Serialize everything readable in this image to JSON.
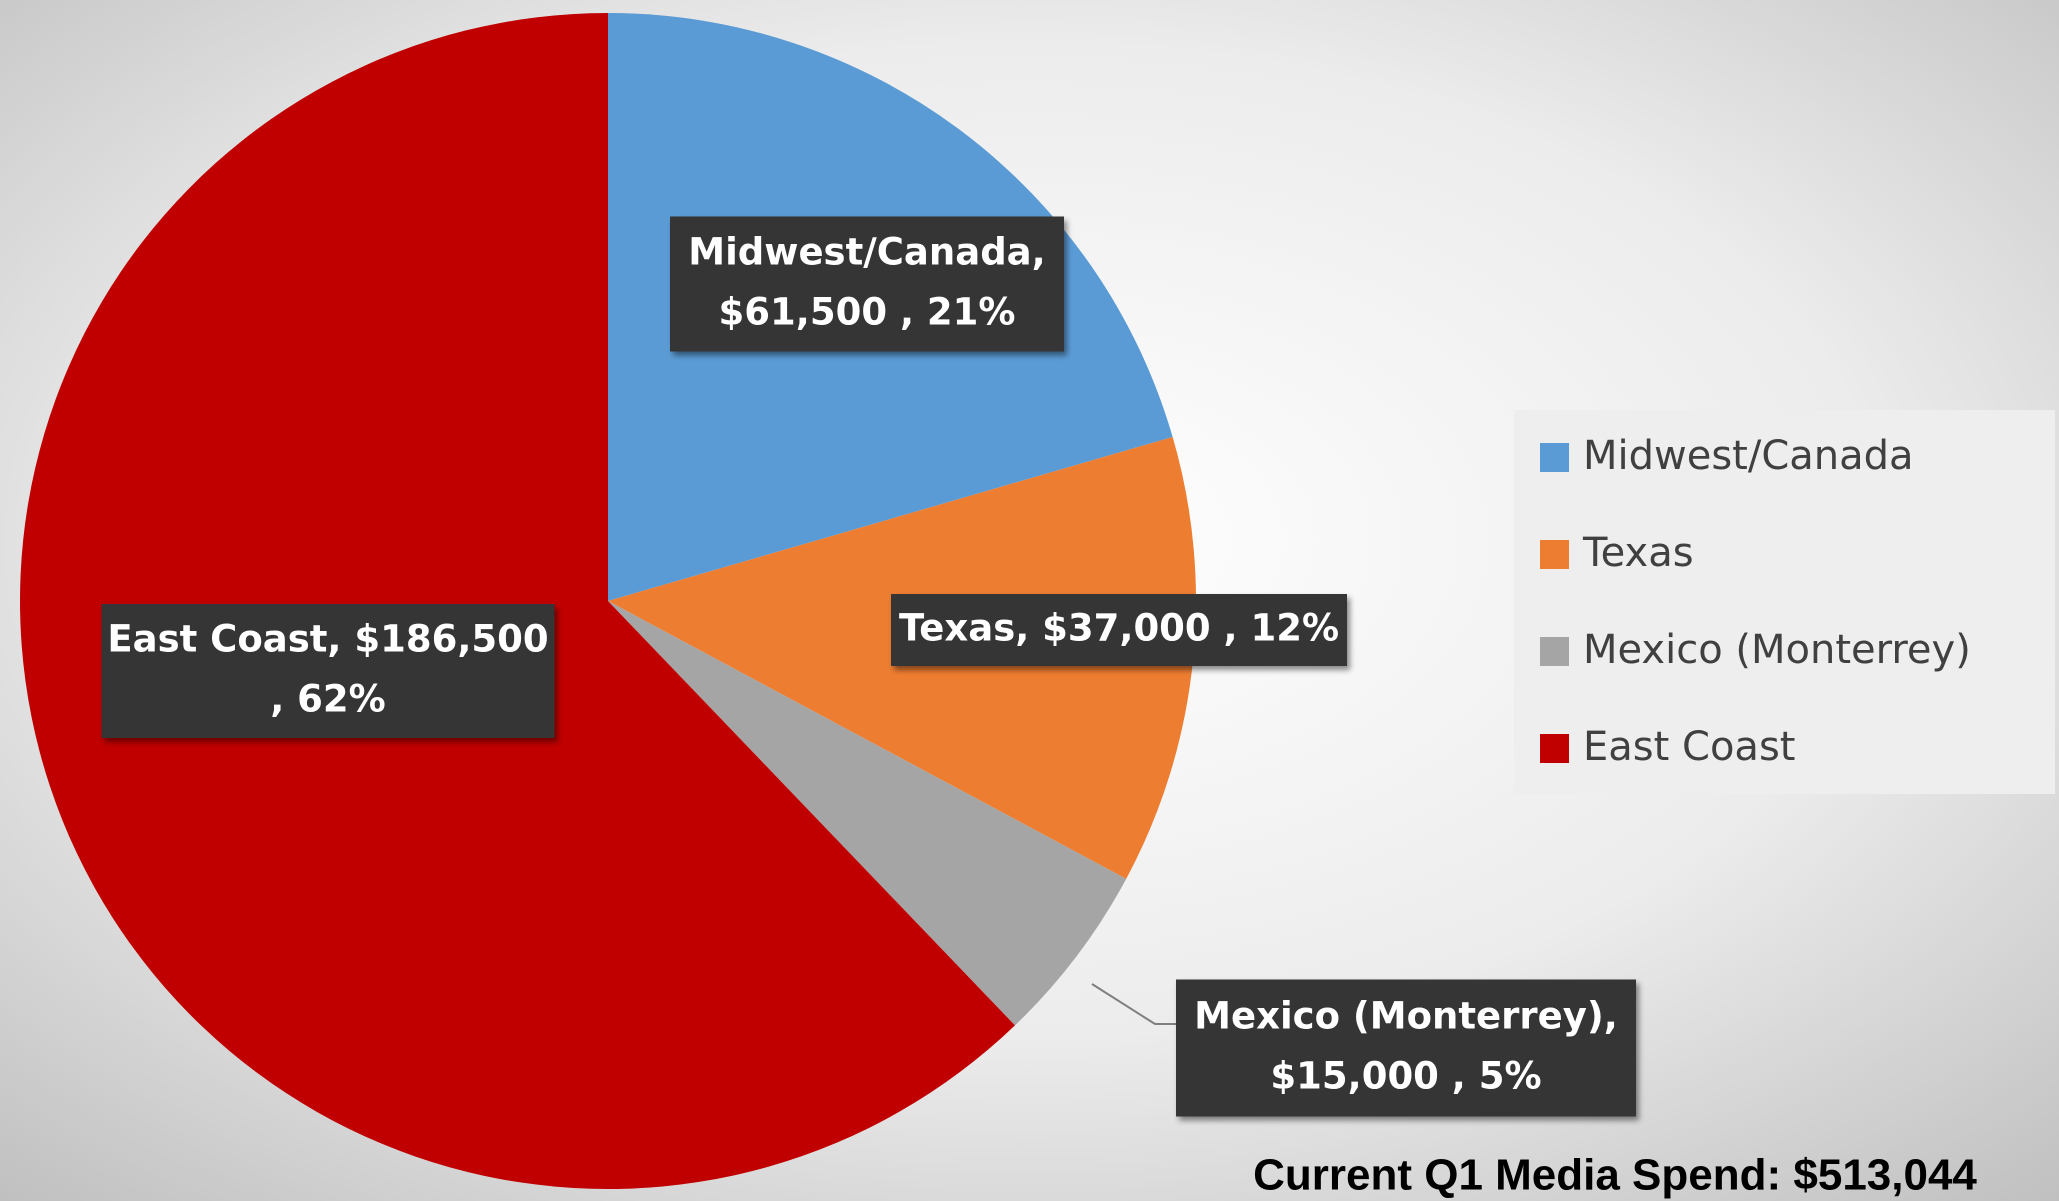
{
  "chart_data": {
    "type": "pie",
    "categories": [
      "Midwest/Canada",
      "Texas",
      "Mexico (Monterrey)",
      "East Coast"
    ],
    "values": [
      61500,
      37000,
      15000,
      186500
    ],
    "colors": [
      "#5b9bd5",
      "#ed7d31",
      "#a5a5a5",
      "#c00000"
    ],
    "data_labels": [
      [
        "Midwest/Canada,",
        "$61,500 , 21%"
      ],
      [
        "Texas, $37,000 , 12%"
      ],
      [
        "Mexico (Monterrey),",
        "$15,000 , 5%"
      ],
      [
        "East Coast, $186,500",
        ", 62%"
      ]
    ],
    "legend": "right",
    "annotation": "Current Q1 Media Spend: $513,044"
  }
}
